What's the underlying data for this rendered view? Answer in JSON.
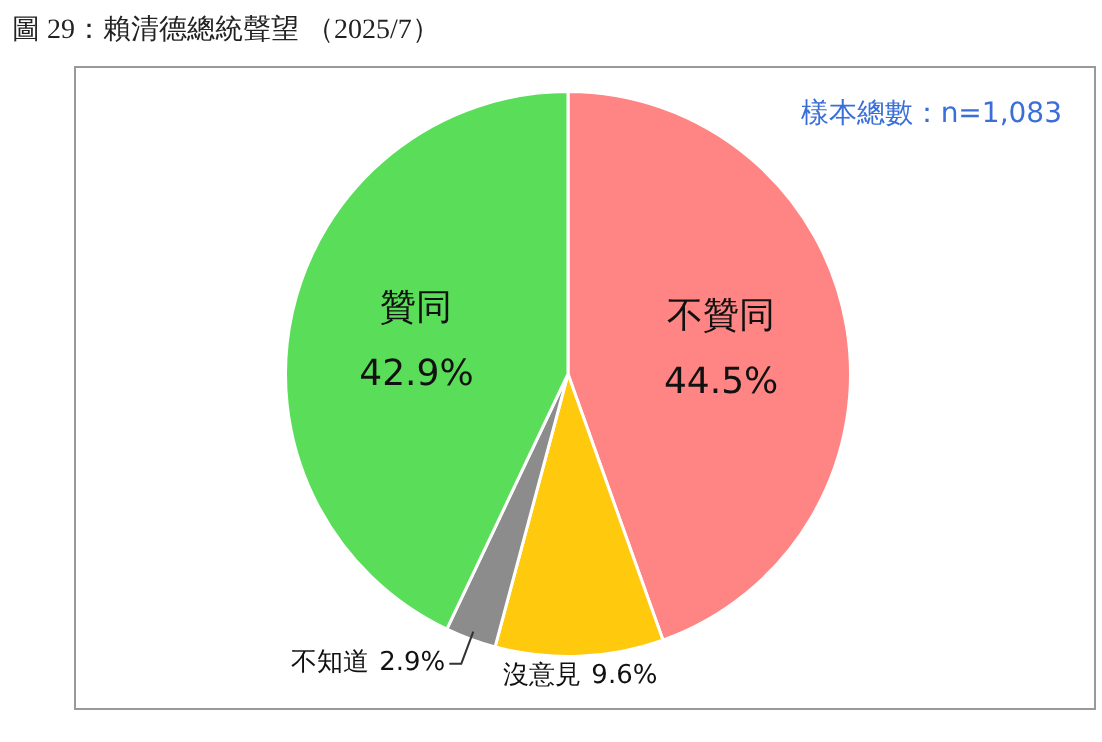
{
  "chart_data": {
    "type": "pie",
    "title": "圖 29：賴清德總統聲望 （2025/7）",
    "categories": [
      "不贊同",
      "沒意見",
      "不知道",
      "贊同"
    ],
    "values": [
      44.5,
      9.6,
      2.9,
      42.9
    ],
    "colors": [
      "#ff8585",
      "#ffc90e",
      "#8c8c8c",
      "#5ade5a"
    ],
    "value_labels": [
      "44.5%",
      "9.6%",
      "2.9%",
      "42.9%"
    ],
    "legend": false,
    "annotations": [
      "樣本總數：n=1,083"
    ]
  }
}
